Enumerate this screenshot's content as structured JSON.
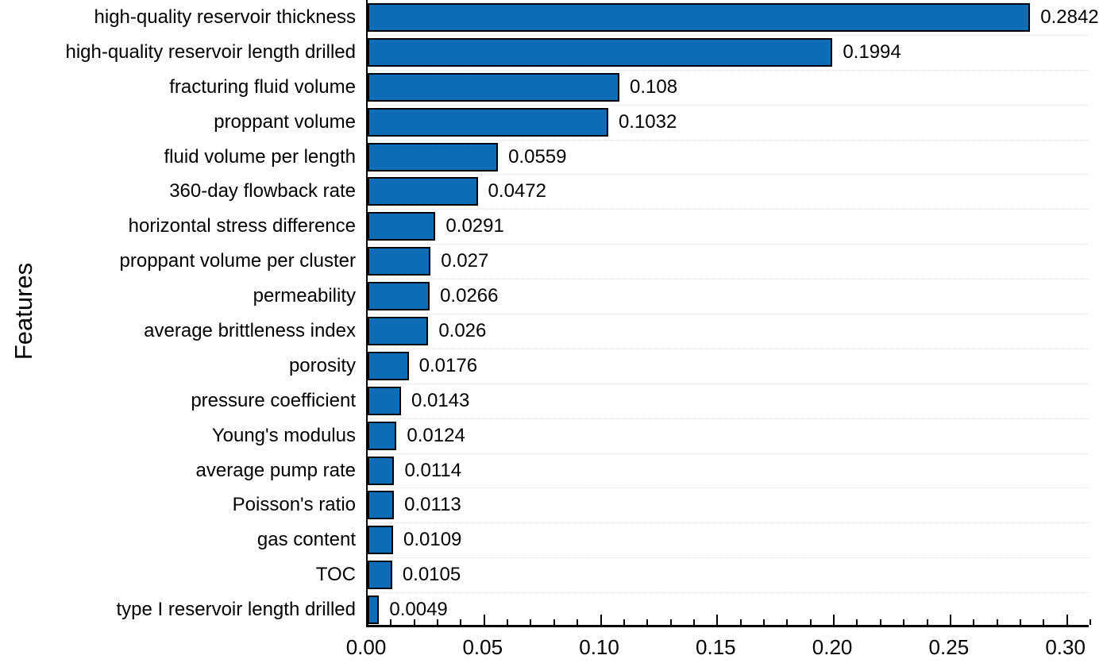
{
  "chart_data": {
    "type": "bar",
    "orientation": "horizontal",
    "title": "",
    "xlabel": "",
    "ylabel": "Features",
    "xlim": [
      0,
      0.31
    ],
    "grid": "dotted horizontal lines between category rows",
    "legend": "none",
    "bar_color": "#0c6cb4",
    "bar_edge_color": "#000000",
    "x_tick_labels": [
      "0.00",
      "0.05",
      "0.10",
      "0.15",
      "0.20",
      "0.25",
      "0.30"
    ],
    "x_tick_values": [
      0.0,
      0.05,
      0.1,
      0.15,
      0.2,
      0.25,
      0.3
    ],
    "x_minor_tick_step": 0.01,
    "categories": [
      "high-quality reservoir thickness",
      "high-quality reservoir length drilled",
      "fracturing fluid volume",
      "proppant volume",
      "fluid volume per length",
      "360-day flowback rate",
      "horizontal stress difference",
      "proppant volume per cluster",
      "permeability",
      "average brittleness index",
      "porosity",
      "pressure coefficient",
      "Young's modulus",
      "average pump rate",
      "Poisson's ratio",
      "gas content",
      "TOC",
      "type I reservoir length drilled"
    ],
    "values": [
      0.2842,
      0.1994,
      0.108,
      0.1032,
      0.0559,
      0.0472,
      0.0291,
      0.027,
      0.0266,
      0.026,
      0.0176,
      0.0143,
      0.0124,
      0.0114,
      0.0113,
      0.0109,
      0.0105,
      0.0049
    ],
    "value_labels": [
      "0.2842",
      "0.1994",
      "0.108",
      "0.1032",
      "0.0559",
      "0.0472",
      "0.0291",
      "0.027",
      "0.0266",
      "0.026",
      "0.0176",
      "0.0143",
      "0.0124",
      "0.0114",
      "0.0113",
      "0.0109",
      "0.0105",
      "0.0049"
    ]
  }
}
